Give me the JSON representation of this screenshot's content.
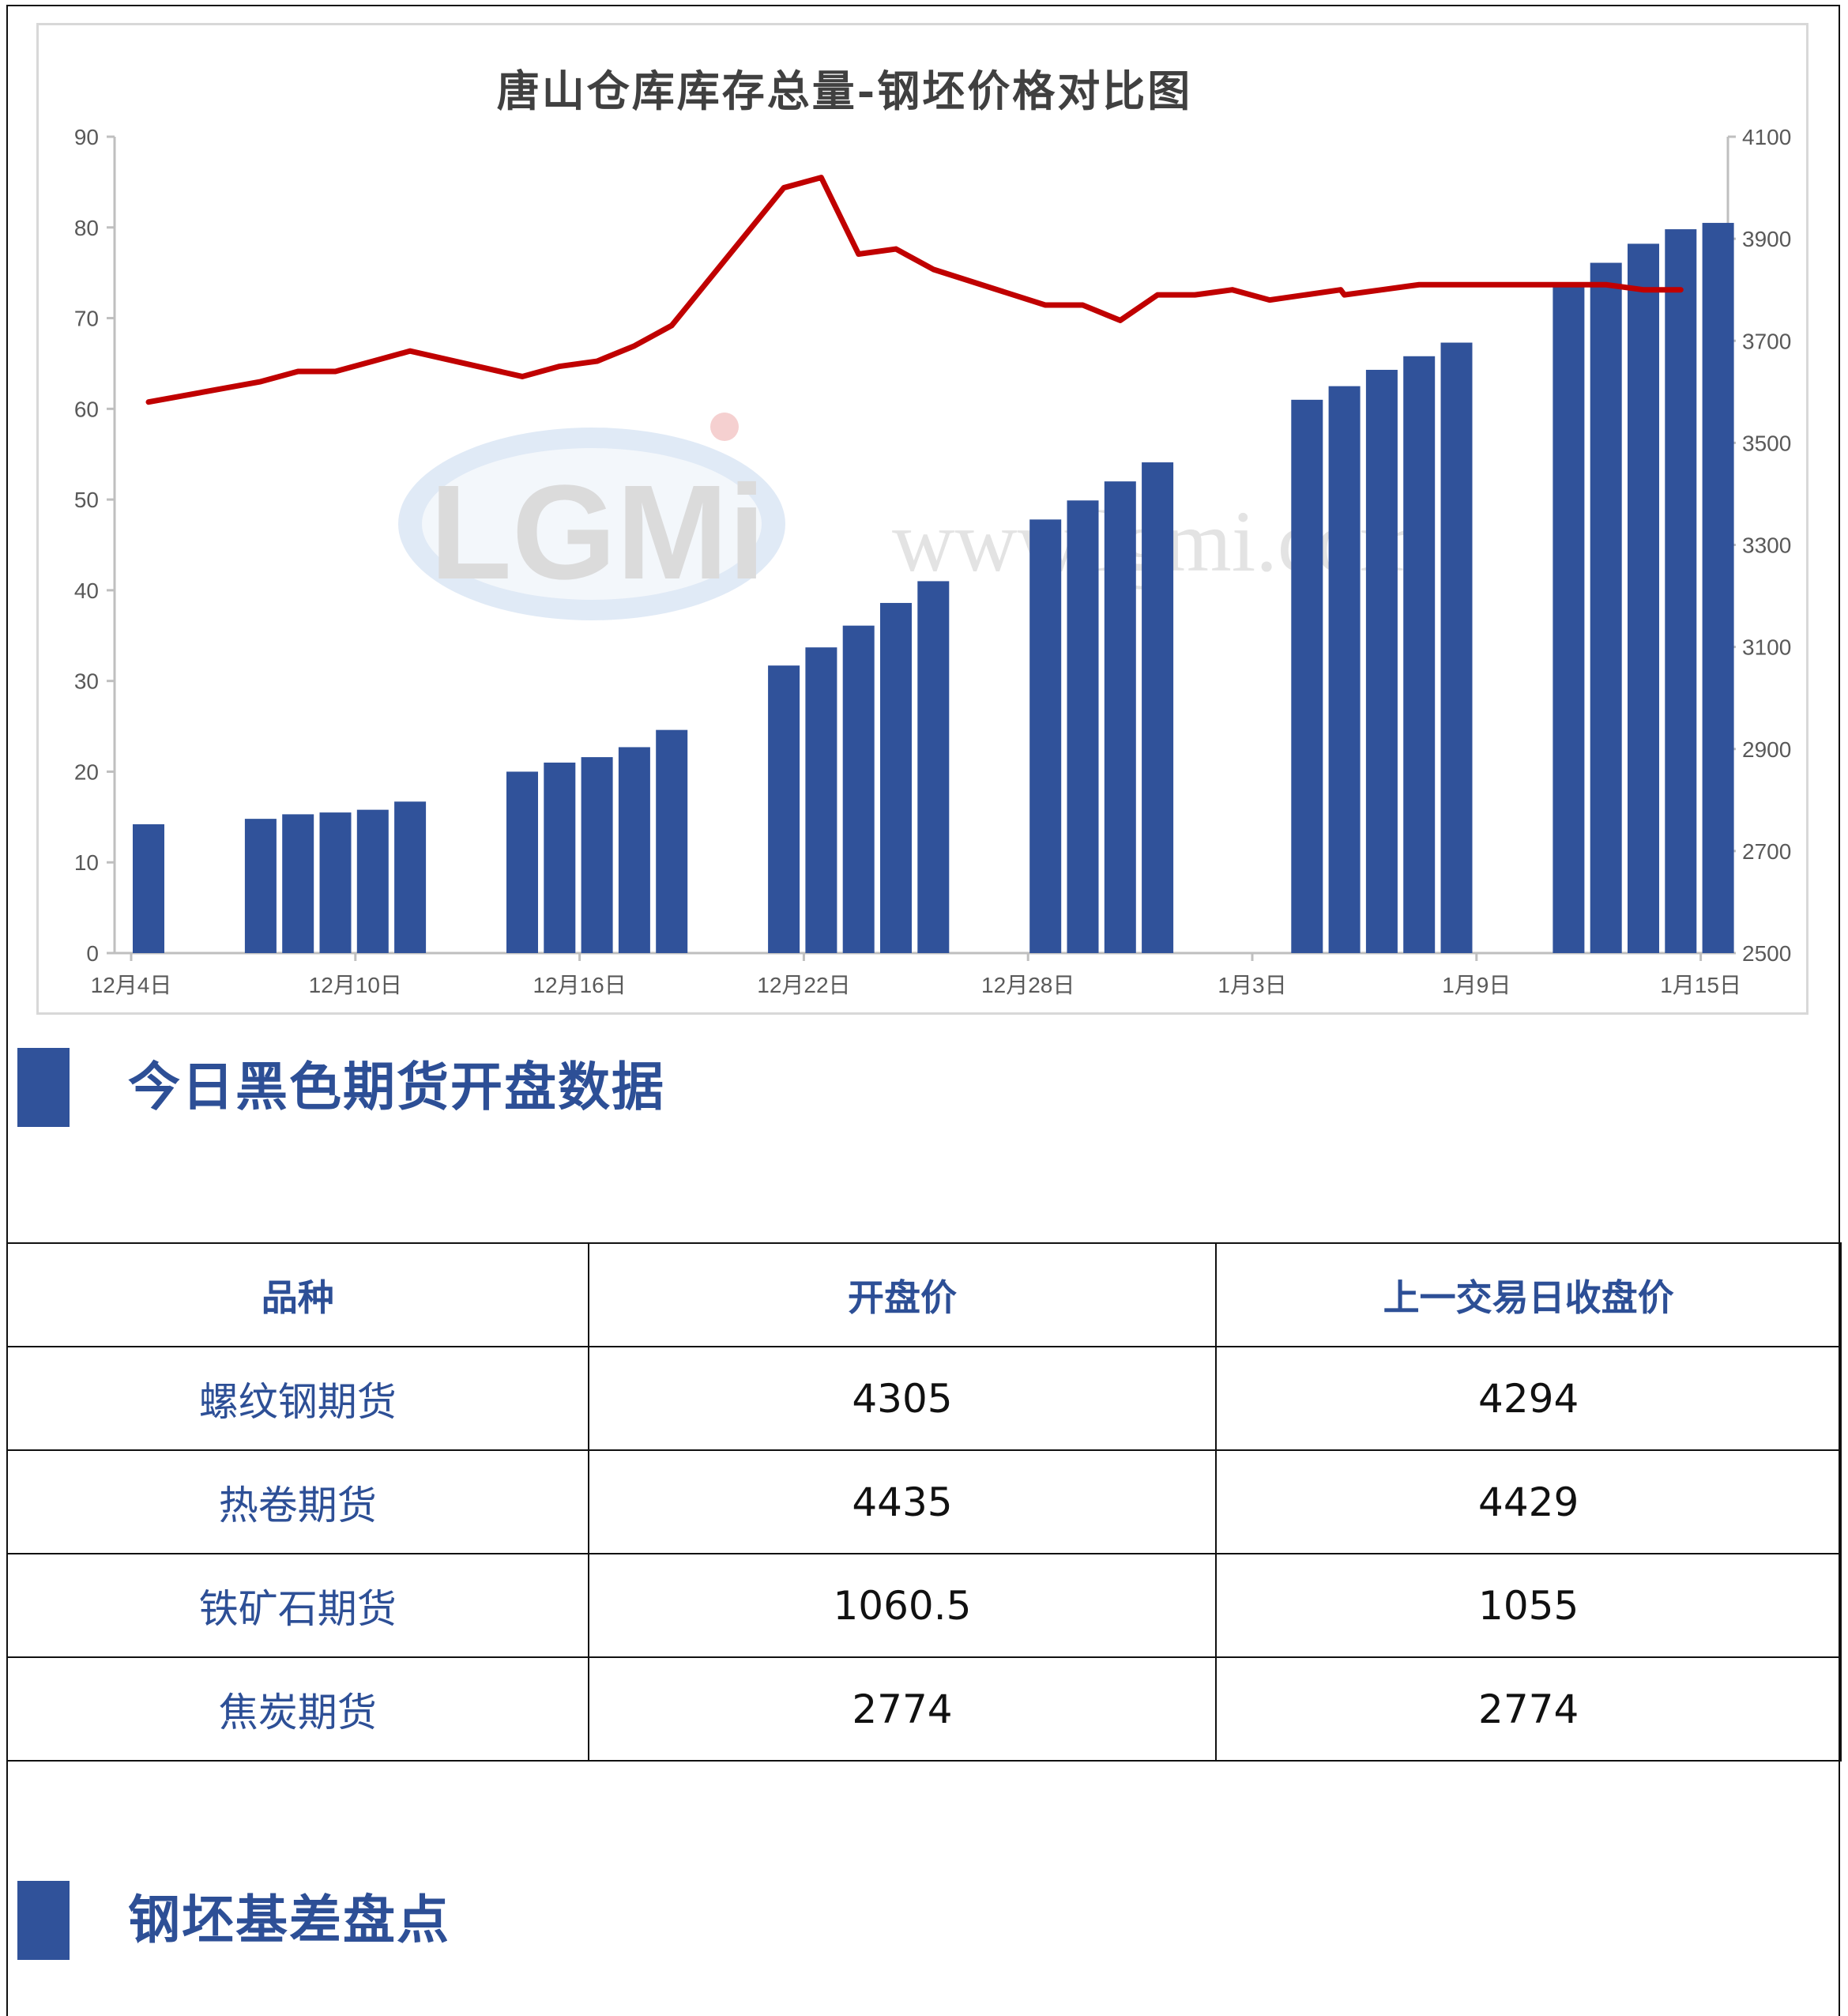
{
  "chart_data": {
    "type": "bar+line",
    "title": "唐山仓库库存总量-钢坯价格对比图",
    "x_tick_labels": [
      "12月4日",
      "12月10日",
      "12月16日",
      "12月22日",
      "12月28日",
      "1月3日",
      "1月9日",
      "1月15日"
    ],
    "y_left": {
      "range": [
        0,
        90
      ],
      "ticks": [
        0,
        10,
        20,
        30,
        40,
        50,
        60,
        70,
        80,
        90
      ]
    },
    "y_right": {
      "range": [
        2500,
        4100
      ],
      "ticks": [
        2500,
        2700,
        2900,
        3100,
        3300,
        3500,
        3700,
        3900,
        4100
      ]
    },
    "bars": {
      "axis": "left",
      "color": "#30529a",
      "points": [
        {
          "x": "12月4日",
          "value": 14.2
        },
        {
          "x": "12月7日",
          "value": 14.8
        },
        {
          "x": "12月8日",
          "value": 15.3
        },
        {
          "x": "12月9日",
          "value": 15.5
        },
        {
          "x": "12月10日",
          "value": 15.8
        },
        {
          "x": "12月11日",
          "value": 16.7
        },
        {
          "x": "12月14日",
          "value": 20.0
        },
        {
          "x": "12月15日",
          "value": 21.0
        },
        {
          "x": "12月16日",
          "value": 21.6
        },
        {
          "x": "12月17日",
          "value": 22.7
        },
        {
          "x": "12月18日",
          "value": 24.6
        },
        {
          "x": "12月21日",
          "value": 31.7
        },
        {
          "x": "12月22日",
          "value": 33.7
        },
        {
          "x": "12月23日",
          "value": 36.1
        },
        {
          "x": "12月24日",
          "value": 38.6
        },
        {
          "x": "12月25日",
          "value": 41.0
        },
        {
          "x": "12月28日",
          "value": 47.8
        },
        {
          "x": "12月29日",
          "value": 49.9
        },
        {
          "x": "12月30日",
          "value": 52.0
        },
        {
          "x": "12月31日",
          "value": 54.1
        },
        {
          "x": "1月4日",
          "value": 61.0
        },
        {
          "x": "1月5日",
          "value": 62.5
        },
        {
          "x": "1月6日",
          "value": 64.3
        },
        {
          "x": "1月7日",
          "value": 65.8
        },
        {
          "x": "1月8日",
          "value": 67.3
        },
        {
          "x": "1月11日",
          "value": 73.8
        },
        {
          "x": "1月12日",
          "value": 76.1
        },
        {
          "x": "1月13日",
          "value": 78.2
        },
        {
          "x": "1月14日",
          "value": 79.8
        },
        {
          "x": "1月15日",
          "value": 80.5
        }
      ]
    },
    "line": {
      "axis": "right",
      "color": "#c00000",
      "points": [
        {
          "x": "12月4日",
          "value": 3580
        },
        {
          "x": "12月7日",
          "value": 3620
        },
        {
          "x": "12月8日",
          "value": 3640
        },
        {
          "x": "12月9日",
          "value": 3640
        },
        {
          "x": "12月10日",
          "value": 3660
        },
        {
          "x": "12月11日",
          "value": 3680
        },
        {
          "x": "12月14日",
          "value": 3630
        },
        {
          "x": "12月15日",
          "value": 3650
        },
        {
          "x": "12月16日",
          "value": 3660
        },
        {
          "x": "12月17日",
          "value": 3690
        },
        {
          "x": "12月18日",
          "value": 3730
        },
        {
          "x": "12月21日",
          "value": 4000
        },
        {
          "x": "12月22日",
          "value": 4020
        },
        {
          "x": "12月23日",
          "value": 3870
        },
        {
          "x": "12月24日",
          "value": 3880
        },
        {
          "x": "12月25日",
          "value": 3840
        },
        {
          "x": "12月28日",
          "value": 3770
        },
        {
          "x": "12月29日",
          "value": 3770
        },
        {
          "x": "12月30日",
          "value": 3740
        },
        {
          "x": "12月31日",
          "value": 3790
        },
        {
          "x": "1月4日",
          "value": 3790
        },
        {
          "x": "1月5日",
          "value": 3800
        },
        {
          "x": "1月6日",
          "value": 3780
        },
        {
          "x": "1月6日b",
          "value": 3800
        },
        {
          "x": "1月7日",
          "value": 3790
        },
        {
          "x": "1月8日",
          "value": 3800
        },
        {
          "x": "1月11日",
          "value": 3810
        },
        {
          "x": "1月12日",
          "value": 3810
        },
        {
          "x": "1月13日",
          "value": 3810
        },
        {
          "x": "1月14日",
          "value": 3800
        },
        {
          "x": "1月15日",
          "value": 3800
        }
      ]
    },
    "grid": false,
    "watermark": "LGMi"
  },
  "section1": {
    "title": "今日黑色期货开盘数据"
  },
  "table": {
    "headers": [
      "品种",
      "开盘价",
      "上一交易日收盘价"
    ],
    "rows": [
      {
        "name": "螺纹钢期货",
        "open": "4305",
        "prev_close": "4294"
      },
      {
        "name": "热卷期货",
        "open": "4435",
        "prev_close": "4429"
      },
      {
        "name": "铁矿石期货",
        "open": "1060.5",
        "prev_close": "1055"
      },
      {
        "name": "焦炭期货",
        "open": "2774",
        "prev_close": "2774"
      }
    ]
  },
  "section2": {
    "title": "钢坯基差盘点"
  }
}
